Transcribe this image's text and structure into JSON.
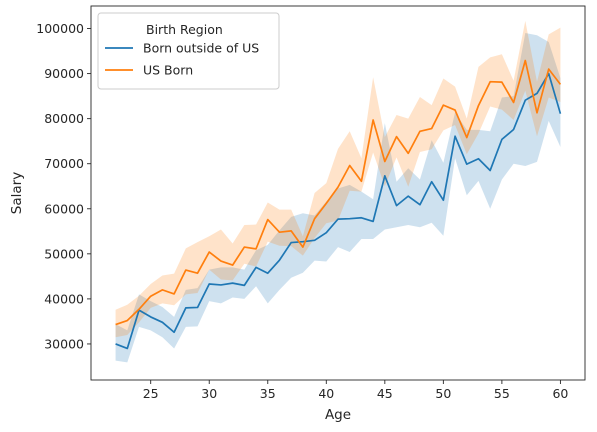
{
  "chart_data": {
    "type": "line",
    "xlabel": "Age",
    "ylabel": "Salary",
    "xlim": [
      19.9,
      62.1
    ],
    "ylim": [
      22000,
      105000
    ],
    "xticks": [
      25,
      30,
      35,
      40,
      45,
      50,
      55,
      60
    ],
    "yticks": [
      30000,
      40000,
      50000,
      60000,
      70000,
      80000,
      90000,
      100000
    ],
    "grid": false,
    "legend": {
      "title": "Birth Region",
      "placement": "top-left"
    },
    "x": [
      22,
      23,
      24,
      25,
      26,
      27,
      28,
      29,
      30,
      31,
      32,
      33,
      34,
      35,
      36,
      37,
      38,
      39,
      40,
      41,
      42,
      43,
      44,
      45,
      46,
      47,
      48,
      49,
      50,
      51,
      52,
      53,
      54,
      55,
      56,
      57,
      58,
      59,
      60
    ],
    "series": [
      {
        "name": "Born outside of US",
        "color": "#1f77b4",
        "values": [
          30000,
          29000,
          37500,
          36000,
          34800,
          32600,
          38000,
          38100,
          43300,
          43100,
          43500,
          43000,
          47000,
          45700,
          48600,
          52500,
          52700,
          53000,
          54700,
          57700,
          57800,
          58000,
          57200,
          67300,
          60700,
          62800,
          60900,
          66000,
          61900,
          76100,
          69900,
          71100,
          68500,
          75400,
          77600,
          84100,
          85600,
          90000,
          81100
        ],
        "ci_lower": [
          26300,
          25900,
          33800,
          33000,
          31500,
          29000,
          33800,
          33900,
          39500,
          39000,
          40300,
          40000,
          42800,
          39000,
          42000,
          44700,
          45800,
          48500,
          48300,
          51500,
          50400,
          53300,
          53300,
          55400,
          55900,
          56400,
          55900,
          56900,
          54000,
          71200,
          63000,
          66200,
          60000,
          66500,
          70000,
          69500,
          70400,
          79500,
          73700
        ],
        "ci_upper": [
          34400,
          33000,
          41000,
          39500,
          38200,
          36000,
          42000,
          42400,
          46500,
          47000,
          47000,
          46500,
          50800,
          52000,
          55200,
          58200,
          59000,
          58500,
          61600,
          64500,
          65300,
          63800,
          62100,
          79000,
          66000,
          69000,
          66500,
          75200,
          70200,
          81400,
          77500,
          77500,
          77200,
          84700,
          85000,
          99000,
          98500,
          97000,
          89000
        ]
      },
      {
        "name": "US Born",
        "color": "#ff7f0e",
        "values": [
          34300,
          35200,
          37700,
          40600,
          42000,
          41100,
          46400,
          45700,
          50400,
          48400,
          47500,
          51500,
          51100,
          57600,
          54800,
          55100,
          51500,
          57800,
          61200,
          64800,
          69600,
          66100,
          79700,
          70500,
          76000,
          72300,
          77200,
          77800,
          83000,
          81900,
          75800,
          82900,
          88200,
          88100,
          83600,
          92900,
          81300,
          91000,
          87600
        ],
        "ci_lower": [
          31500,
          32000,
          34800,
          38000,
          39000,
          38600,
          41000,
          41300,
          46500,
          44300,
          44100,
          47800,
          47200,
          52700,
          51800,
          51700,
          49600,
          53500,
          56800,
          57400,
          64000,
          63800,
          72500,
          65000,
          71400,
          64900,
          72600,
          73200,
          77400,
          78600,
          72100,
          76700,
          82700,
          82000,
          79700,
          86200,
          76100,
          84700,
          83700
        ],
        "ci_upper": [
          37600,
          38700,
          40700,
          43300,
          45200,
          45600,
          51200,
          52600,
          53900,
          55400,
          52300,
          56400,
          56500,
          61400,
          59800,
          59800,
          53900,
          63500,
          65700,
          73300,
          77200,
          71200,
          89200,
          75900,
          80800,
          80000,
          84800,
          83000,
          88900,
          87100,
          80000,
          91500,
          93600,
          94300,
          88400,
          101700,
          88200,
          98700,
          100200
        ]
      }
    ]
  }
}
